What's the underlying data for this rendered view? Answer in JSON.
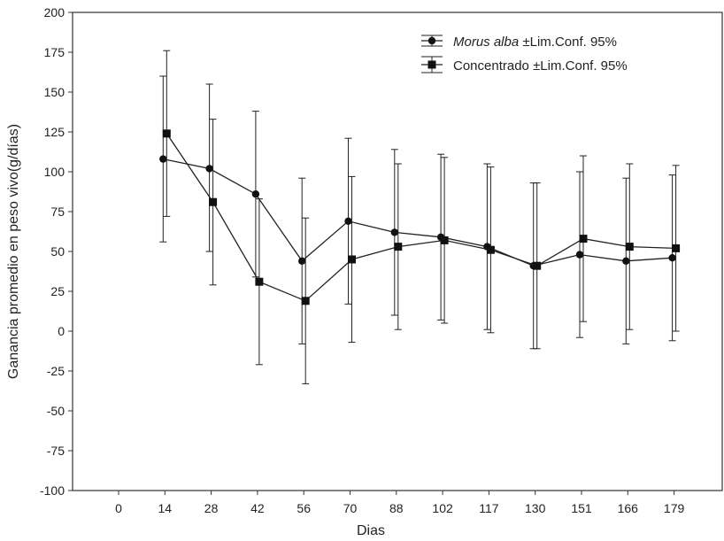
{
  "chart_data": {
    "type": "line",
    "xlabel": "Dias",
    "ylabel": "Ganancia promedio en peso vivo(g/días)",
    "categories": [
      "0",
      "14",
      "28",
      "42",
      "56",
      "70",
      "88",
      "102",
      "117",
      "130",
      "151",
      "166",
      "179"
    ],
    "ylim": [
      -100,
      200
    ],
    "yticks": [
      200,
      175,
      150,
      125,
      100,
      75,
      50,
      25,
      0,
      -25,
      -50,
      -75,
      -100
    ],
    "grid": false,
    "legend_position": "top-right",
    "series": [
      {
        "name": "Morus alba",
        "name_suffix": " ±Lim.Conf. 95%",
        "marker": "circle",
        "x": [
          "14",
          "28",
          "42",
          "56",
          "70",
          "88",
          "102",
          "117",
          "130",
          "151",
          "166",
          "179"
        ],
        "values": [
          108,
          102,
          86,
          44,
          69,
          62,
          59,
          53,
          41,
          48,
          44,
          46
        ],
        "ci_upper": [
          160,
          155,
          138,
          96,
          121,
          114,
          111,
          105,
          93,
          100,
          96,
          98
        ],
        "ci_lower": [
          56,
          50,
          34,
          -8,
          17,
          10,
          7,
          1,
          -11,
          -4,
          -8,
          -6
        ]
      },
      {
        "name": "Concentrado",
        "name_suffix": " ±Lim.Conf. 95%",
        "marker": "square",
        "x": [
          "14",
          "28",
          "42",
          "56",
          "70",
          "88",
          "102",
          "117",
          "130",
          "151",
          "166",
          "179"
        ],
        "values": [
          124,
          81,
          31,
          19,
          45,
          53,
          57,
          51,
          41,
          58,
          53,
          52
        ],
        "ci_upper": [
          176,
          133,
          83,
          71,
          97,
          105,
          109,
          103,
          93,
          110,
          105,
          104
        ],
        "ci_lower": [
          72,
          29,
          -21,
          -33,
          -7,
          1,
          5,
          -1,
          -11,
          6,
          1,
          0
        ]
      }
    ]
  }
}
